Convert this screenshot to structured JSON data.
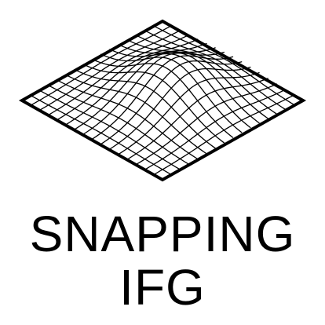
{
  "logo": {
    "name_line_1": "SNAPPING",
    "name_line_2": "IFG",
    "mark_icon": "gaussian-surface-mesh-icon",
    "ink_color": "#000000",
    "background_color": "#ffffff"
  }
}
